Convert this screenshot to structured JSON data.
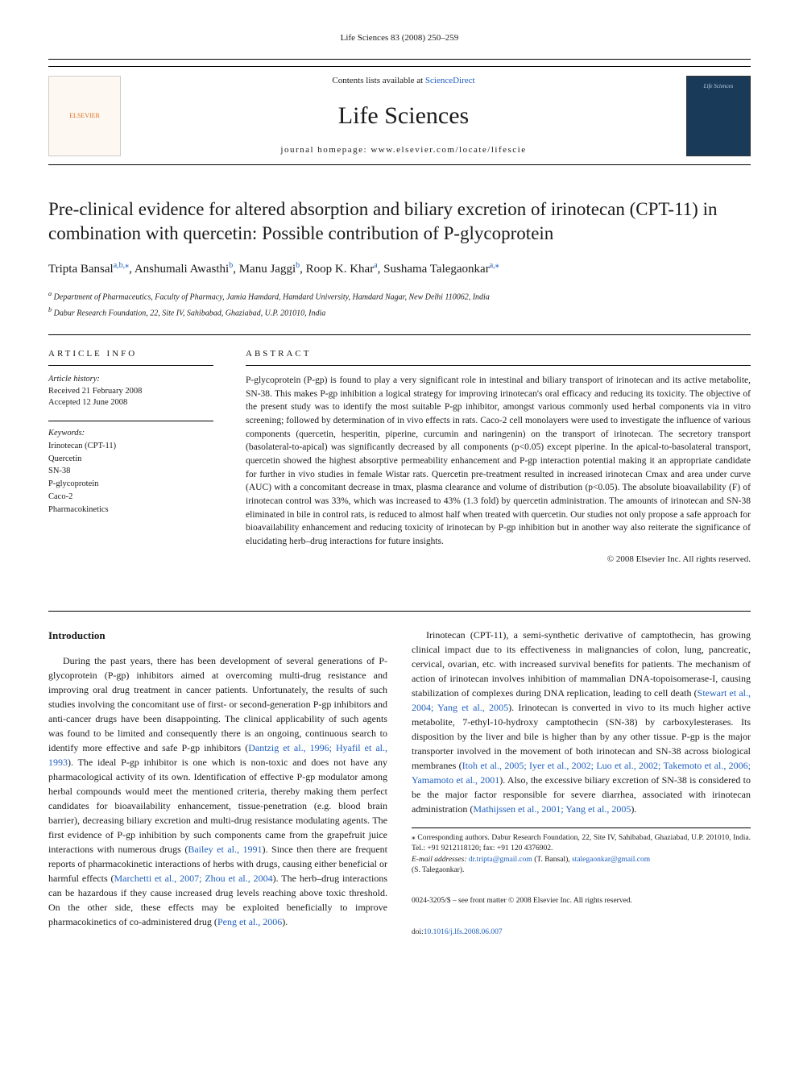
{
  "header": {
    "citation": "Life Sciences 83 (2008) 250–259",
    "contents_prefix": "Contents lists available at ",
    "contents_link": "ScienceDirect",
    "journal_name": "Life Sciences",
    "homepage_prefix": "journal homepage: ",
    "homepage_url": "www.elsevier.com/locate/lifescie",
    "elsevier_text": "ELSEVIER",
    "cover_text": "Life Sciences"
  },
  "title": "Pre-clinical evidence for altered absorption and biliary excretion of irinotecan (CPT-11) in combination with quercetin: Possible contribution of P-glycoprotein",
  "authors": {
    "list": "Tripta Bansal",
    "a1_sup": "a,b,⁎",
    "a2": ", Anshumali Awasthi",
    "a2_sup": "b",
    "a3": ", Manu Jaggi",
    "a3_sup": "b",
    "a4": ", Roop K. Khar",
    "a4_sup": "a",
    "a5": ", Sushama Talegaonkar",
    "a5_sup": "a,⁎"
  },
  "affiliations": {
    "a": "Department of Pharmaceutics, Faculty of Pharmacy, Jamia Hamdard, Hamdard University, Hamdard Nagar, New Delhi 110062, India",
    "b": "Dabur Research Foundation, 22, Site IV, Sahibabad, Ghaziabad, U.P. 201010, India"
  },
  "article_info": {
    "header": "ARTICLE INFO",
    "history_label": "Article history:",
    "received": "Received 21 February 2008",
    "accepted": "Accepted 12 June 2008",
    "keywords_label": "Keywords:",
    "keywords": [
      "Irinotecan (CPT-11)",
      "Quercetin",
      "SN-38",
      "P-glycoprotein",
      "Caco-2",
      "Pharmacokinetics"
    ]
  },
  "abstract": {
    "header": "ABSTRACT",
    "text": "P-glycoprotein (P-gp) is found to play a very significant role in intestinal and biliary transport of irinotecan and its active metabolite, SN-38. This makes P-gp inhibition a logical strategy for improving irinotecan's oral efficacy and reducing its toxicity. The objective of the present study was to identify the most suitable P-gp inhibitor, amongst various commonly used herbal components via in vitro screening; followed by determination of in vivo effects in rats. Caco-2 cell monolayers were used to investigate the influence of various components (quercetin, hesperitin, piperine, curcumin and naringenin) on the transport of irinotecan. The secretory transport (basolateral-to-apical) was significantly decreased by all components (p<0.05) except piperine. In the apical-to-basolateral transport, quercetin showed the highest absorptive permeability enhancement and P-gp interaction potential making it an appropriate candidate for further in vivo studies in female Wistar rats. Quercetin pre-treatment resulted in increased irinotecan Cmax and area under curve (AUC) with a concomitant decrease in tmax, plasma clearance and volume of distribution (p<0.05). The absolute bioavailability (F) of irinotecan control was 33%, which was increased to 43% (1.3 fold) by quercetin administration. The amounts of irinotecan and SN-38 eliminated in bile in control rats, is reduced to almost half when treated with quercetin. Our studies not only propose a safe approach for bioavailability enhancement and reducing toxicity of irinotecan by P-gp inhibition but in another way also reiterate the significance of elucidating herb–drug interactions for future insights.",
    "copyright": "© 2008 Elsevier Inc. All rights reserved."
  },
  "body": {
    "intro_heading": "Introduction",
    "p1a": "During the past years, there has been development of several generations of P-glycoprotein (P-gp) inhibitors aimed at overcoming multi-drug resistance and improving oral drug treatment in cancer patients. Unfortunately, the results of such studies involving the concomitant use of first- or second-generation P-gp inhibitors and anti-cancer drugs have been disappointing. The clinical applicability of such agents was found to be limited and consequently there is an ongoing, continuous search to identify more effective and safe P-gp inhibitors (",
    "p1_ref1": "Dantzig et al., 1996; Hyafil et al., 1993",
    "p1b": "). The ideal P-gp inhibitor is one which is non-toxic and does not have any pharmacological activity of its own. Identification of effective P-gp modulator among herbal compounds would meet the mentioned criteria, thereby making them perfect candidates for bioavailability enhancement, tissue-penetration (e.g. blood brain barrier), decreasing biliary excretion and multi-drug resistance modulating agents. The first evidence of P-gp inhibition by such components came from the grapefruit juice interactions with numerous drugs (",
    "p1_ref2": "Bailey et al., 1991",
    "p1c": "). Since then there are frequent reports of pharmacokinetic interactions of herbs with drugs, causing either beneficial or harmful effects (",
    "p1_ref3": "Marchetti et al., 2007; Zhou et al., 2004",
    "p1d": "). The herb–drug interactions can be hazardous if they cause increased drug levels reaching above toxic threshold. On the other side, these effects may be exploited beneficially to improve pharmacokinetics of co-administered drug (",
    "p1_ref4": "Peng et al., 2006",
    "p1e": ").",
    "p2a": "Irinotecan (CPT-11), a semi-synthetic derivative of camptothecin, has growing clinical impact due to its effectiveness in malignancies of colon, lung, pancreatic, cervical, ovarian, etc. with increased survival benefits for patients. The mechanism of action of irinotecan involves inhibition of mammalian DNA-topoisomerase-I, causing stabilization of complexes during DNA replication, leading to cell death (",
    "p2_ref1": "Stewart et al., 2004; Yang et al., 2005",
    "p2b": "). Irinotecan is converted in vivo to its much higher active metabolite, 7-ethyl-10-hydroxy camptothecin (SN-38) by carboxylesterases. Its disposition by the liver and bile is higher than by any other tissue. P-gp is the major transporter involved in the movement of both irinotecan and SN-38 across biological membranes (",
    "p2_ref2": "Itoh et al., 2005; Iyer et al., 2002; Luo et al., 2002; Takemoto et al., 2006; Yamamoto et al., 2001",
    "p2c": "). Also, the excessive biliary excretion of SN-38 is considered to be the major factor responsible for severe diarrhea, associated with irinotecan administration (",
    "p2_ref3": "Mathijssen et al., 2001; Yang et al., 2005",
    "p2d": ")."
  },
  "footnotes": {
    "corr": "⁎ Corresponding authors. Dabur Research Foundation, 22, Site IV, Sahibabad, Ghaziabad, U.P. 201010, India. Tel.: +91 9212118120; fax: +91 120 4376902.",
    "email_label": "E-mail addresses: ",
    "email1": "dr.tripta@gmail.com",
    "email1_name": " (T. Bansal), ",
    "email2": "stalegaonkar@gmail.com",
    "email2_name": " (S. Talegaonkar)."
  },
  "footer": {
    "issn": "0024-3205/$ – see front matter © 2008 Elsevier Inc. All rights reserved.",
    "doi_label": "doi:",
    "doi": "10.1016/j.lfs.2008.06.007"
  }
}
